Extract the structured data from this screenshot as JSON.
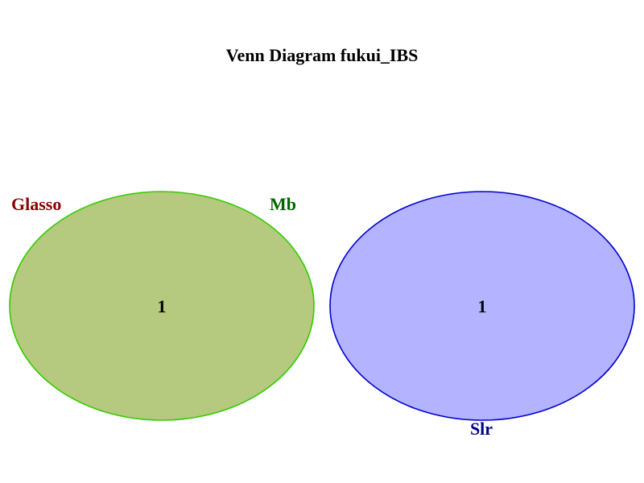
{
  "title": "Venn Diagram fukui_IBS",
  "sets": [
    {
      "name": "Glasso",
      "color": "#8b0000"
    },
    {
      "name": "Mb",
      "color": "#006400"
    },
    {
      "name": "Slr",
      "color": "#00008b"
    }
  ],
  "regions": [
    {
      "label": "1",
      "fill": "#b5c97f",
      "stroke": "#33cc00"
    },
    {
      "label": "1",
      "fill": "#b3b3ff",
      "stroke": "#0000cc"
    }
  ]
}
